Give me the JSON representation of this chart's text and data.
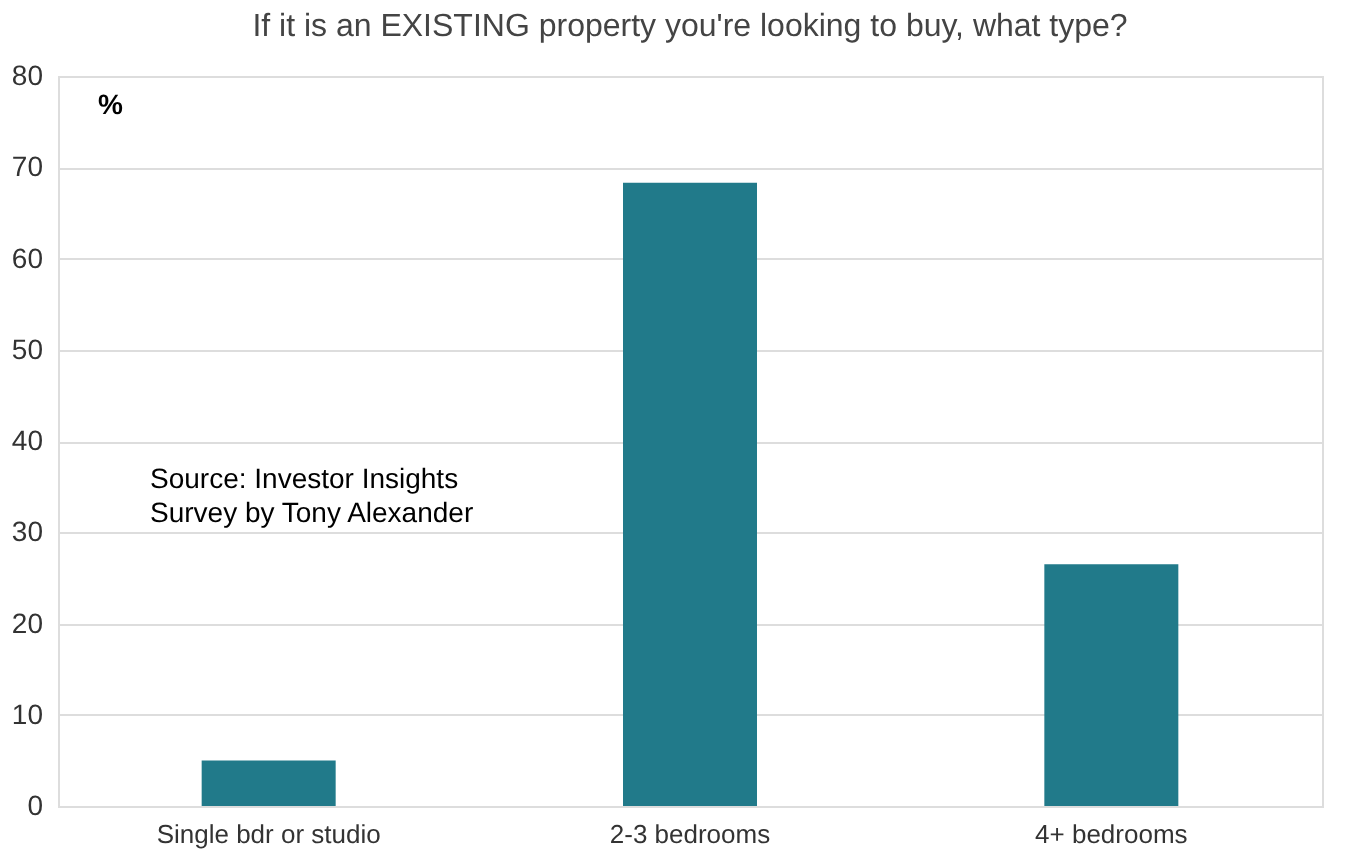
{
  "chart_data": {
    "type": "bar",
    "title": "If it is an EXISTING property you're looking to buy, what type?",
    "ylabel": "%",
    "categories": [
      "Single bdr or studio",
      "2-3 bedrooms",
      "4+ bedrooms"
    ],
    "values": [
      5,
      68.3,
      26.5
    ],
    "color": "#217a8a",
    "ylim": [
      0,
      80
    ],
    "yticks": [
      0,
      10,
      20,
      30,
      40,
      50,
      60,
      70,
      80
    ],
    "grid": "y",
    "annotations": [
      "Source: Investor Insights Survey by Tony Alexander"
    ]
  }
}
